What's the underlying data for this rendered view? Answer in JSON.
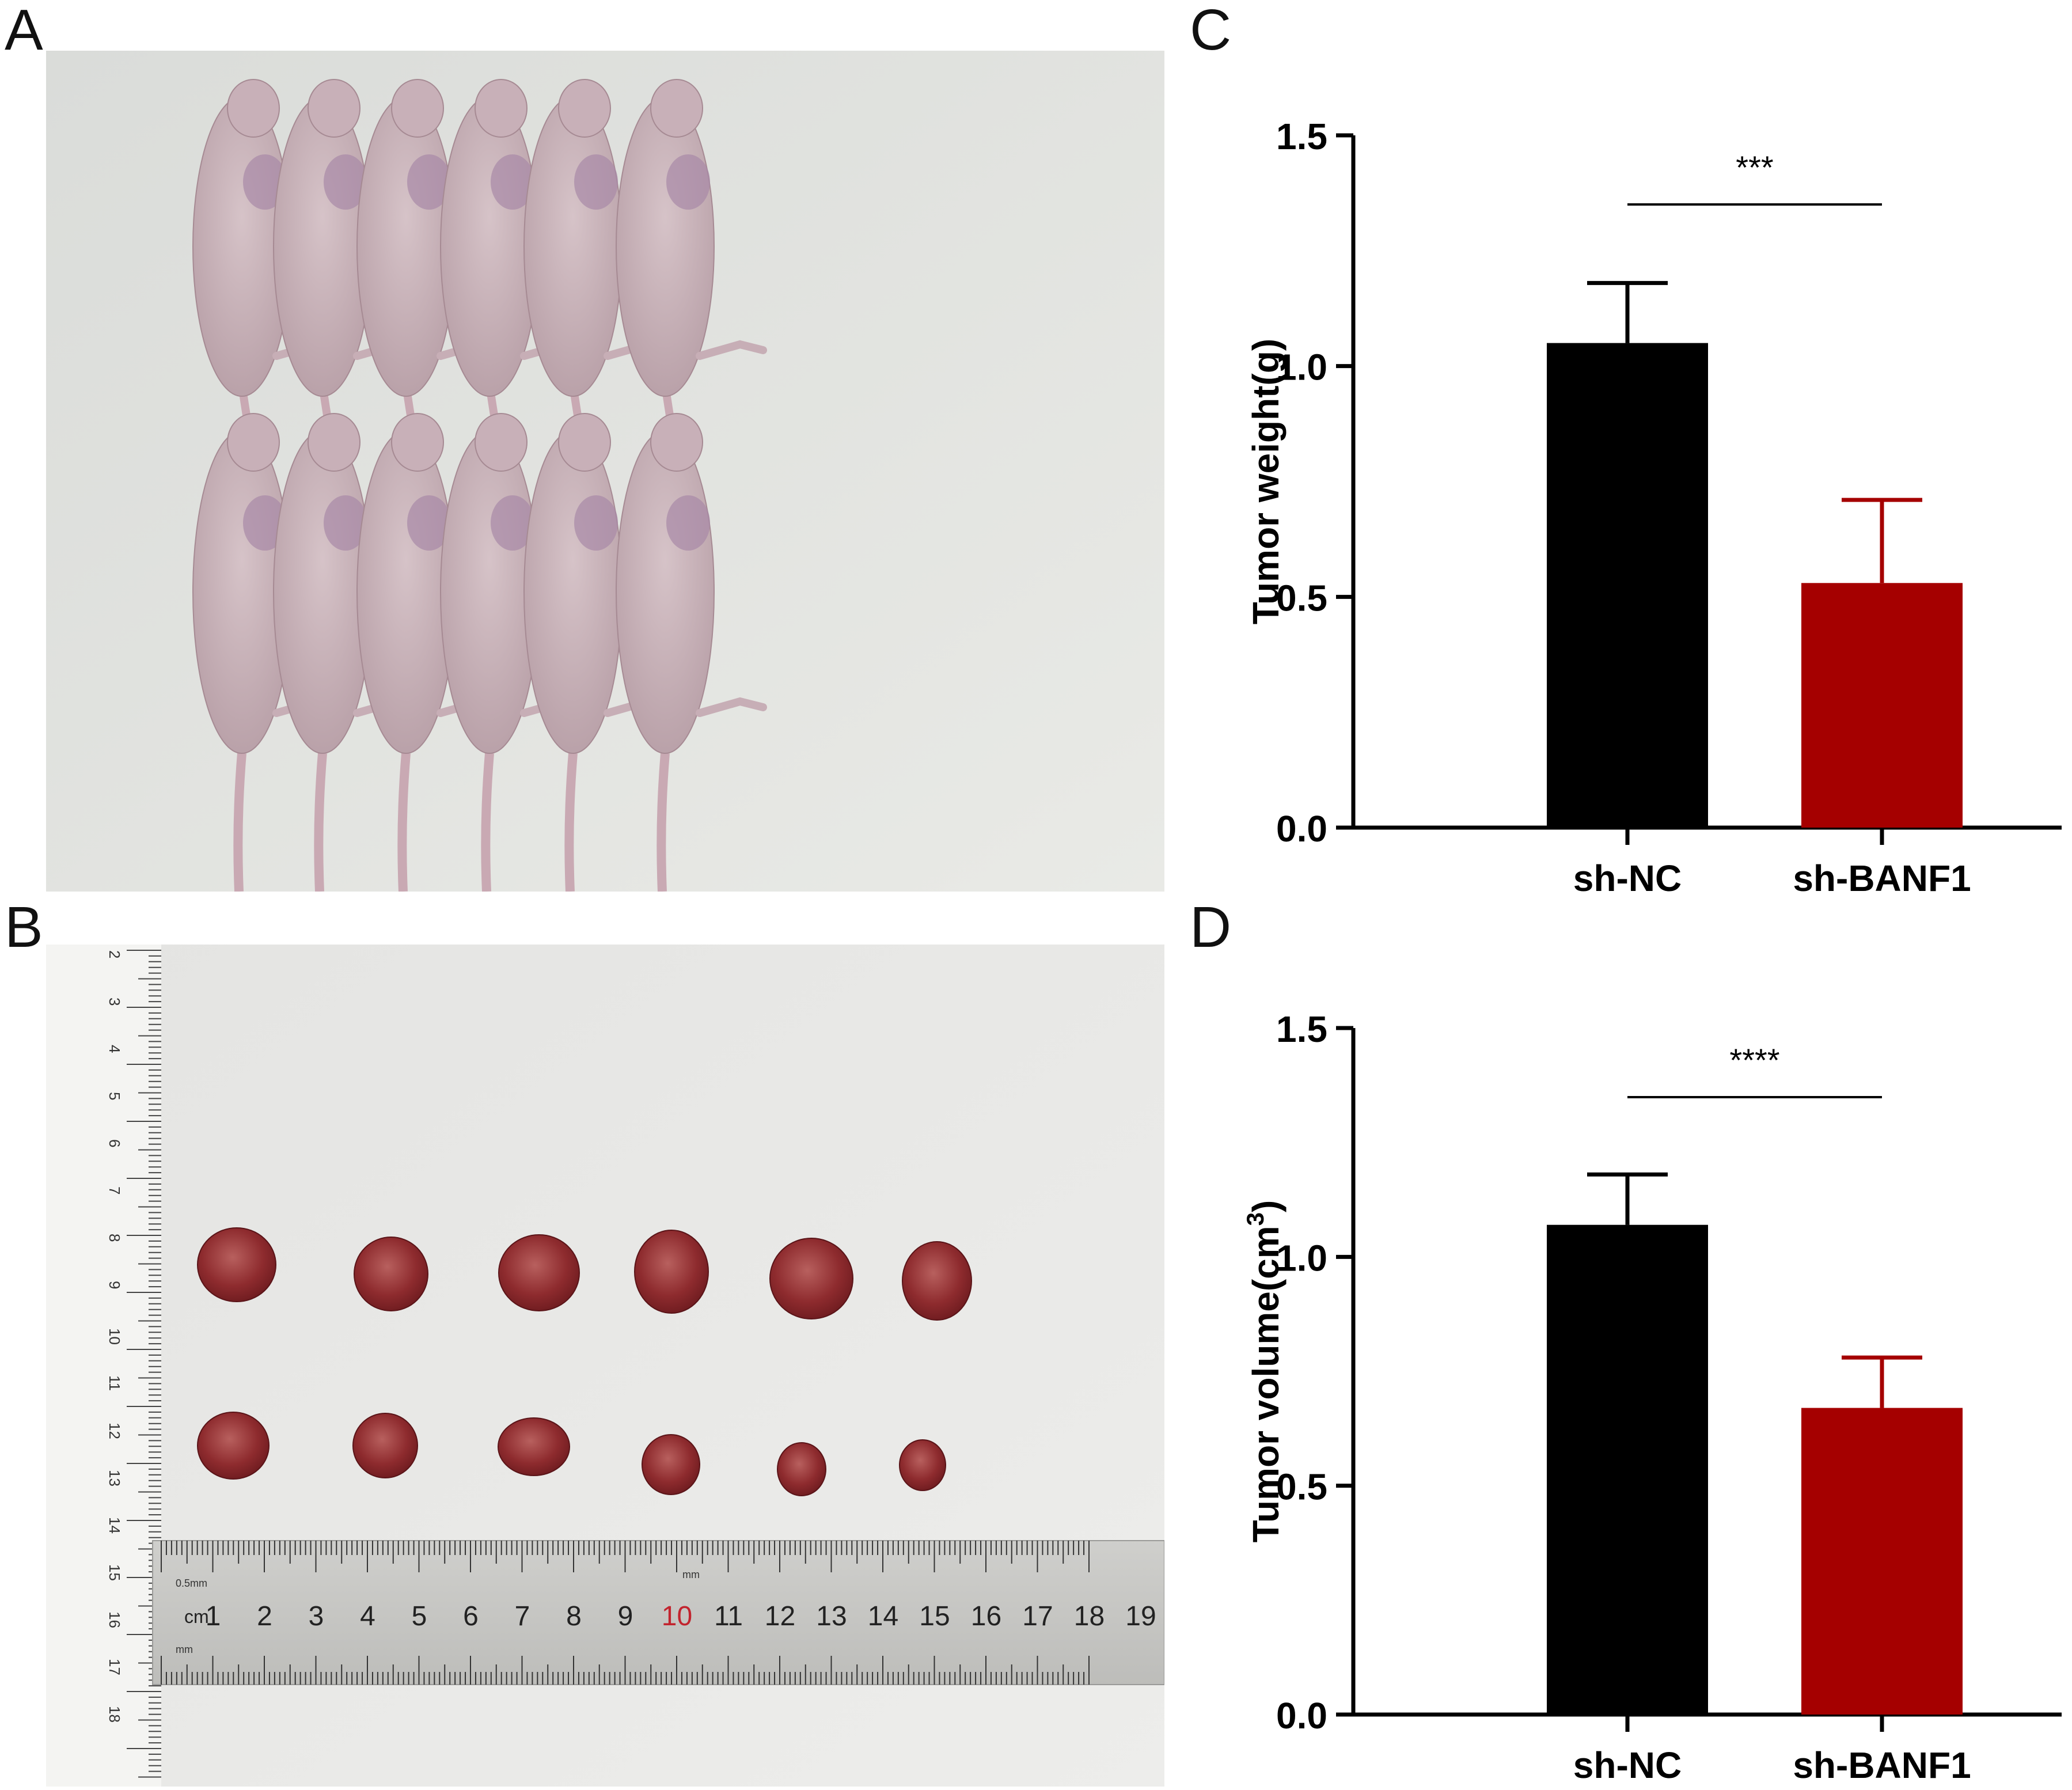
{
  "panels": {
    "a": "A",
    "b": "B",
    "c": "C",
    "d": "D"
  },
  "photos": {
    "mice": {
      "icon": "mice-photo",
      "count": 12
    },
    "tumors": {
      "icon": "tumor-photo",
      "count": 12,
      "ruler_unit": "cm",
      "ruler_marks": [
        "1",
        "2",
        "3",
        "4",
        "5",
        "6",
        "7",
        "8",
        "9",
        "10",
        "11",
        "12",
        "13",
        "14",
        "15",
        "16",
        "17",
        "18",
        "19",
        "2"
      ],
      "ruler_small": "0.5mm",
      "ruler_mm": "mm",
      "vertical_ruler_marks": [
        "2",
        "3",
        "4",
        "5",
        "6",
        "7",
        "8",
        "9",
        "10",
        "11",
        "12",
        "13",
        "14",
        "15",
        "16",
        "17",
        "18"
      ]
    }
  },
  "chart_data": [
    {
      "type": "bar",
      "panel": "C",
      "categories": [
        "sh-NC",
        "sh-BANF1"
      ],
      "values": [
        1.05,
        0.53
      ],
      "errors": [
        0.13,
        0.18
      ],
      "colors": [
        "#000000",
        "#a50000"
      ],
      "ylabel": "Tumor weight(g)",
      "ylim": [
        0,
        1.5
      ],
      "yticks": [
        "0.0",
        "0.5",
        "1.0",
        "1.5"
      ],
      "significance": "***",
      "grid": false
    },
    {
      "type": "bar",
      "panel": "D",
      "categories": [
        "sh-NC",
        "sh-BANF1"
      ],
      "values": [
        1.07,
        0.67
      ],
      "errors": [
        0.11,
        0.11
      ],
      "colors": [
        "#000000",
        "#a50000"
      ],
      "ylabel": "Tumor volume(cm",
      "ylabel_sup": "3",
      "ylabel_end": ")",
      "ylim": [
        0,
        1.5
      ],
      "yticks": [
        "0.0",
        "0.5",
        "1.0",
        "1.5"
      ],
      "significance": "****",
      "grid": false
    }
  ]
}
